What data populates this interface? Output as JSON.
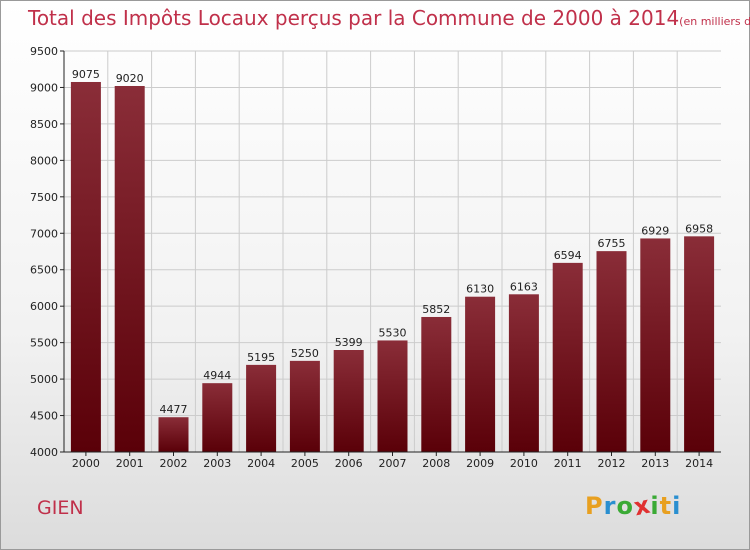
{
  "chart_data": {
    "type": "bar",
    "title": "Total des Impôts Locaux perçus par la Commune de 2000 à 2014",
    "unit_label": "(en milliers d'€)",
    "xlabel": "",
    "ylabel": "",
    "categories": [
      "2000",
      "2001",
      "2002",
      "2003",
      "2004",
      "2005",
      "2006",
      "2007",
      "2008",
      "2009",
      "2010",
      "2011",
      "2012",
      "2013",
      "2014"
    ],
    "values": [
      9075,
      9020,
      4477,
      4944,
      5195,
      5250,
      5399,
      5530,
      5852,
      6130,
      6163,
      6594,
      6755,
      6929,
      6958
    ],
    "ylim": [
      4000,
      9500
    ],
    "yticks": [
      4000,
      4500,
      5000,
      5500,
      6000,
      6500,
      7000,
      7500,
      8000,
      8500,
      9000,
      9500
    ],
    "grid": true,
    "bar_color_top": "#8a2d38",
    "bar_color_bottom": "#5a0008"
  },
  "commune": "GIEN",
  "logo": {
    "letters": [
      "P",
      "r",
      "o",
      "x",
      "i",
      "t",
      "i"
    ],
    "colors": [
      "#e8a020",
      "#2a8fd0",
      "#3aaa35",
      "#e03030",
      "#3aaa35",
      "#e8a020",
      "#2a8fd0"
    ]
  },
  "colors": {
    "accent": "#c0304a",
    "grid": "#cccccc",
    "axis": "#222222"
  }
}
